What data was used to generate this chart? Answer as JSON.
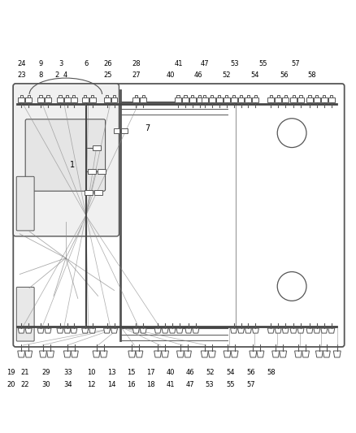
{
  "bg_color": "#ffffff",
  "fig_width": 4.38,
  "fig_height": 5.33,
  "dpi": 100,
  "vehicle_color": "#555555",
  "line_color": "#444444",
  "font_color": "#000000",
  "font_size": 6.0,
  "connector_color": "#555555",
  "top_labels_row1": [
    [
      "24",
      0.058
    ],
    [
      "9",
      0.112
    ],
    [
      "3",
      0.168
    ],
    [
      "6",
      0.24
    ],
    [
      "26",
      0.302
    ],
    [
      "28",
      0.382
    ],
    [
      "41",
      0.502
    ],
    [
      "47",
      0.576
    ],
    [
      "53",
      0.66
    ],
    [
      "55",
      0.74
    ],
    [
      "57",
      0.832
    ]
  ],
  "top_labels_row2": [
    [
      "23",
      0.058
    ],
    [
      "8",
      0.112
    ],
    [
      "2",
      0.158
    ],
    [
      "4",
      0.182
    ],
    [
      "25",
      0.302
    ],
    [
      "27",
      0.382
    ],
    [
      "40",
      0.48
    ],
    [
      "46",
      0.558
    ],
    [
      "52",
      0.638
    ],
    [
      "54",
      0.718
    ],
    [
      "56",
      0.8
    ],
    [
      "58",
      0.878
    ]
  ],
  "bottom_labels_row1": [
    [
      "19",
      0.028
    ],
    [
      "21",
      0.068
    ],
    [
      "29",
      0.128
    ],
    [
      "33",
      0.188
    ],
    [
      "10",
      0.256
    ],
    [
      "13",
      0.312
    ],
    [
      "15",
      0.368
    ],
    [
      "17",
      0.422
    ],
    [
      "40",
      0.478
    ],
    [
      "46",
      0.534
    ],
    [
      "52",
      0.59
    ],
    [
      "54",
      0.648
    ],
    [
      "56",
      0.706
    ],
    [
      "58",
      0.764
    ]
  ],
  "bottom_labels_row2": [
    [
      "20",
      0.028
    ],
    [
      "22",
      0.068
    ],
    [
      "30",
      0.128
    ],
    [
      "34",
      0.188
    ],
    [
      "12",
      0.256
    ],
    [
      "14",
      0.312
    ],
    [
      "16",
      0.368
    ],
    [
      "18",
      0.422
    ],
    [
      "41",
      0.478
    ],
    [
      "47",
      0.534
    ],
    [
      "53",
      0.59
    ],
    [
      "55",
      0.648
    ],
    [
      "57",
      0.706
    ]
  ]
}
